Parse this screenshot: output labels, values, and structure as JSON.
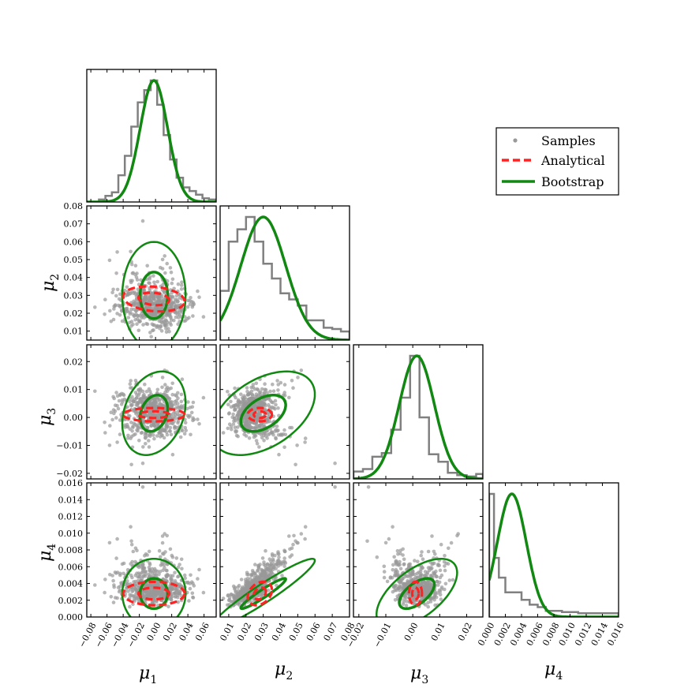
{
  "chart_data": {
    "type": "corner",
    "title": "",
    "parameters": [
      "μ1",
      "μ2",
      "μ3",
      "μ4"
    ],
    "axis_labels": [
      {
        "base": "μ",
        "sub": "1"
      },
      {
        "base": "μ",
        "sub": "2"
      },
      {
        "base": "μ",
        "sub": "3"
      },
      {
        "base": "μ",
        "sub": "4"
      }
    ],
    "ranges": [
      [
        -0.085,
        0.075
      ],
      [
        0.005,
        0.08
      ],
      [
        -0.022,
        0.026
      ],
      [
        0.0,
        0.016
      ]
    ],
    "ticks": [
      [
        "−0.08",
        "−0.06",
        "−0.04",
        "−0.02",
        "0.00",
        "0.02",
        "0.04",
        "0.06"
      ],
      [
        "0.01",
        "0.02",
        "0.03",
        "0.04",
        "0.05",
        "0.06",
        "0.07",
        "0.08"
      ],
      [
        "−0.02",
        "−0.01",
        "0.00",
        "0.01",
        "0.02"
      ],
      [
        "0.000",
        "0.002",
        "0.004",
        "0.006",
        "0.008",
        "0.010",
        "0.012",
        "0.014",
        "0.016"
      ]
    ],
    "tick_values": [
      [
        -0.08,
        -0.06,
        -0.04,
        -0.02,
        0.0,
        0.02,
        0.04,
        0.06
      ],
      [
        0.01,
        0.02,
        0.03,
        0.04,
        0.05,
        0.06,
        0.07,
        0.08
      ],
      [
        -0.02,
        -0.01,
        0.0,
        0.01,
        0.02
      ],
      [
        0.0,
        0.002,
        0.004,
        0.006,
        0.008,
        0.01,
        0.012,
        0.014,
        0.016
      ]
    ],
    "legend": {
      "position": "upper-right",
      "entries": [
        {
          "label": "Samples",
          "style": "marker",
          "color": "#999999"
        },
        {
          "label": "Analytical",
          "style": "dashed",
          "color": "#ff2222"
        },
        {
          "label": "Bootstrap",
          "style": "solid",
          "color": "#118811"
        }
      ]
    },
    "colors": {
      "samples": "#999999",
      "histogram": "#808080",
      "analytical": "#ff2222",
      "bootstrap": "#118811"
    },
    "bootstrap": {
      "mean": [
        -0.002,
        0.03,
        0.0015,
        0.0028
      ],
      "std": [
        0.017,
        0.013,
        0.0065,
        0.0018
      ],
      "corr": {
        "0_1": 0.0,
        "0_2": 0.25,
        "0_3": 0.0,
        "1_2": 0.45,
        "1_3": 0.95,
        "2_3": 0.6
      }
    },
    "analytical": {
      "mean": [
        -0.002,
        0.028,
        0.001,
        0.0028
      ],
      "std": [
        0.019,
        0.0035,
        0.0012,
        0.0007
      ],
      "corr": {
        "0_1": -0.2,
        "0_2": 0.0,
        "0_3": 0.0,
        "1_2": 0.0,
        "1_3": 0.3,
        "2_3": 0.0
      }
    },
    "histograms": [
      {
        "edges": [
          -0.07,
          -0.062,
          -0.054,
          -0.046,
          -0.038,
          -0.03,
          -0.022,
          -0.014,
          -0.006,
          0.002,
          0.01,
          0.018,
          0.026,
          0.034,
          0.042,
          0.05,
          0.058,
          0.066,
          0.074
        ],
        "counts": [
          0.02,
          0.05,
          0.08,
          0.22,
          0.38,
          0.62,
          0.82,
          0.92,
          1.0,
          0.8,
          0.55,
          0.35,
          0.2,
          0.12,
          0.09,
          0.06,
          0.03,
          0.02
        ]
      },
      {
        "edges": [
          0.005,
          0.01,
          0.015,
          0.02,
          0.025,
          0.03,
          0.035,
          0.04,
          0.045,
          0.05,
          0.055,
          0.06,
          0.065,
          0.07,
          0.075,
          0.08
        ],
        "counts": [
          0.4,
          0.8,
          0.9,
          1.0,
          0.8,
          0.62,
          0.5,
          0.38,
          0.33,
          0.28,
          0.16,
          0.16,
          0.1,
          0.09,
          0.07
        ]
      },
      {
        "edges": [
          -0.022,
          -0.0185,
          -0.015,
          -0.0115,
          -0.008,
          -0.0045,
          -0.001,
          0.0025,
          0.006,
          0.0095,
          0.013,
          0.0165,
          0.02,
          0.0235,
          0.026
        ],
        "counts": [
          0.06,
          0.08,
          0.18,
          0.21,
          0.4,
          0.66,
          1.0,
          0.5,
          0.2,
          0.14,
          0.05,
          0.03,
          0.02,
          0.04
        ]
      },
      {
        "edges": [
          0.0,
          0.0006,
          0.0012,
          0.002,
          0.003,
          0.004,
          0.005,
          0.006,
          0.007,
          0.008,
          0.009,
          0.01,
          0.011,
          0.012,
          0.013,
          0.014,
          0.015,
          0.016
        ],
        "counts": [
          1.0,
          0.48,
          0.32,
          0.2,
          0.2,
          0.14,
          0.1,
          0.08,
          0.05,
          0.05,
          0.04,
          0.04,
          0.03,
          0.03,
          0.03,
          0.03,
          0.03
        ]
      }
    ],
    "samples_count": 600
  }
}
